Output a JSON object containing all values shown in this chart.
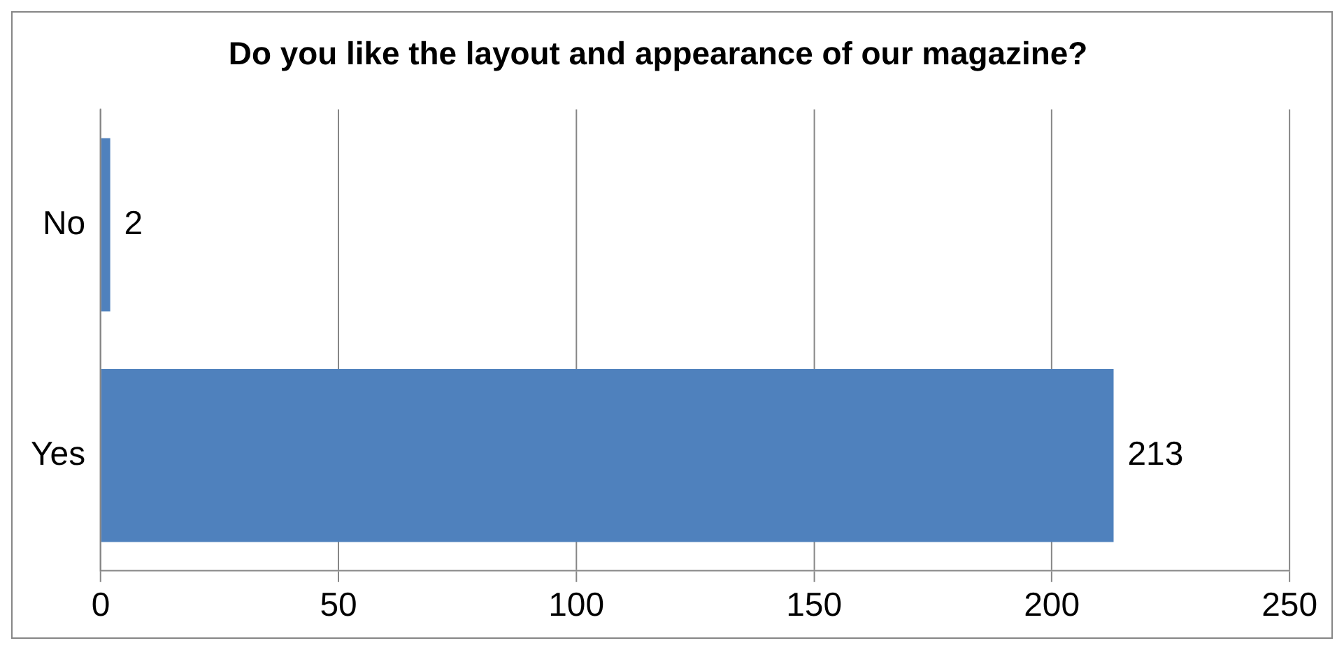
{
  "chart_data": {
    "type": "bar",
    "orientation": "horizontal",
    "title": "Do you like the layout and appearance of our magazine?",
    "categories": [
      "No",
      "Yes"
    ],
    "values": [
      2,
      213
    ],
    "color": "#4f81bd",
    "xlim": [
      0,
      250
    ],
    "xticks": [
      0,
      50,
      100,
      150,
      200,
      250
    ],
    "grid": "x",
    "data_labels": true,
    "legend": false
  }
}
